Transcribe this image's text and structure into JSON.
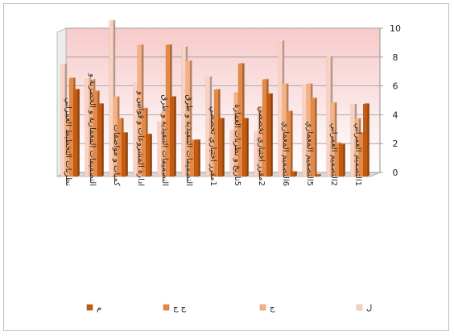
{
  "chart_data": {
    "type": "bar",
    "title": "",
    "xlabel": "",
    "ylabel": "",
    "ylim": [
      0,
      10
    ],
    "yticks": [
      0,
      2,
      4,
      6,
      8,
      10
    ],
    "grid": true,
    "legend_position": "bottom",
    "categories": [
      "نظريات التخطيط العمراني",
      "التصميمات المعمارية و الحضرية و",
      "كميات و مواصفات",
      "ادارة المشروعات و قوانين و",
      "التصميمات التنفيذية و طرق",
      "التصميمات التنفيذية و طرق",
      "1مقرر اختياري تخصصي",
      "5تاريخ و نظريات العمارة",
      "2مقرر اختياري تخصصي",
      "6التصميم المعماري",
      "5التصميم المعماري",
      "2التصميم العمراني",
      "1التصميم العمراني"
    ],
    "series": [
      {
        "name": "ل",
        "color": "#FAD2C4",
        "values": [
          7.8,
          6.8,
          10.8,
          6.5,
          3.8,
          9.0,
          6.9,
          3.2,
          3.1,
          9.4,
          6.4,
          8.3,
          5.0
        ]
      },
      {
        "name": "ج",
        "color": "#F4B183",
        "values": [
          4.0,
          6.7,
          5.5,
          9.1,
          4.5,
          8.0,
          4.2,
          5.8,
          4.8,
          6.4,
          6.4,
          5.1,
          4.0
        ]
      },
      {
        "name": "ج ج",
        "color": "#E58A46",
        "values": [
          6.8,
          5.9,
          4.0,
          4.7,
          9.1,
          2.5,
          6.0,
          7.8,
          6.7,
          4.5,
          5.4,
          2.3,
          3.0
        ]
      },
      {
        "name": "م",
        "color": "#C55A11",
        "values": [
          6.0,
          5.0,
          3.0,
          2.9,
          5.5,
          2.5,
          4.0,
          4.0,
          5.7,
          0.3,
          0.1,
          2.2,
          5.0
        ]
      }
    ]
  }
}
